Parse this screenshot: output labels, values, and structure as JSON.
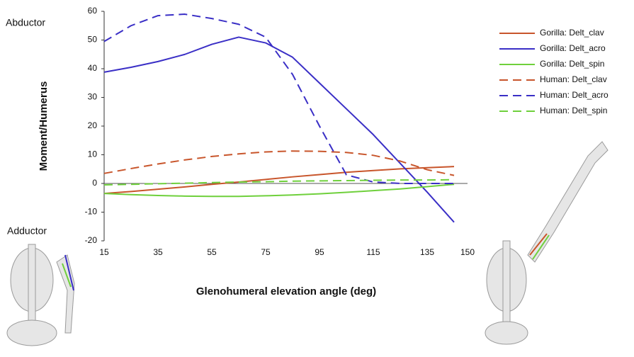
{
  "chart_data": {
    "type": "line",
    "xlabel": "Glenohumeral elevation angle (deg)",
    "ylabel": "Moment/Humerus",
    "annotations": [
      "Abductor",
      "Adductor"
    ],
    "x": [
      15,
      25,
      35,
      45,
      55,
      65,
      75,
      85,
      95,
      105,
      115,
      125,
      135,
      145
    ],
    "xlim": [
      15,
      150
    ],
    "xticks": [
      15,
      35,
      55,
      75,
      95,
      115,
      135,
      150
    ],
    "ylim": [
      -20,
      60
    ],
    "yticks": [
      -20,
      -10,
      0,
      10,
      20,
      30,
      40,
      50,
      60
    ],
    "series": [
      {
        "name": "Gorilla: Delt_clav",
        "color": "#c8552b",
        "dashed": false,
        "values": [
          -3.5,
          -2.8,
          -2,
          -1.2,
          -0.3,
          0.5,
          1.4,
          2.3,
          3.1,
          3.9,
          4.5,
          5.1,
          5.5,
          5.9
        ]
      },
      {
        "name": "Gorilla: Delt_acro",
        "color": "#3a2fc6",
        "dashed": false,
        "values": [
          38.8,
          40.5,
          42.5,
          45,
          48.5,
          51,
          49,
          44,
          35,
          26,
          17,
          7,
          -3,
          -13.5
        ]
      },
      {
        "name": "Gorilla: Delt_spin",
        "color": "#6fd03c",
        "dashed": false,
        "values": [
          -3.5,
          -3.9,
          -4.2,
          -4.4,
          -4.5,
          -4.5,
          -4.3,
          -4,
          -3.6,
          -3.1,
          -2.5,
          -1.9,
          -1.1,
          -0.3
        ]
      },
      {
        "name": "Human: Delt_clav",
        "color": "#c8552b",
        "dashed": true,
        "values": [
          3.5,
          5.2,
          6.8,
          8.2,
          9.4,
          10.3,
          11,
          11.3,
          11.2,
          10.8,
          9.8,
          7.8,
          4.8,
          2.8
        ]
      },
      {
        "name": "Human: Delt_acro",
        "color": "#3a2fc6",
        "dashed": true,
        "values": [
          49.5,
          55,
          58.5,
          59,
          57.5,
          55.5,
          51,
          38,
          20,
          3,
          0.5,
          0,
          0,
          0
        ]
      },
      {
        "name": "Human: Delt_spin",
        "color": "#6fd03c",
        "dashed": true,
        "values": [
          -0.5,
          -0.3,
          -0.1,
          0.1,
          0.3,
          0.5,
          0.6,
          0.8,
          0.9,
          1,
          1.1,
          1.2,
          1.2,
          1.3
        ]
      }
    ]
  }
}
